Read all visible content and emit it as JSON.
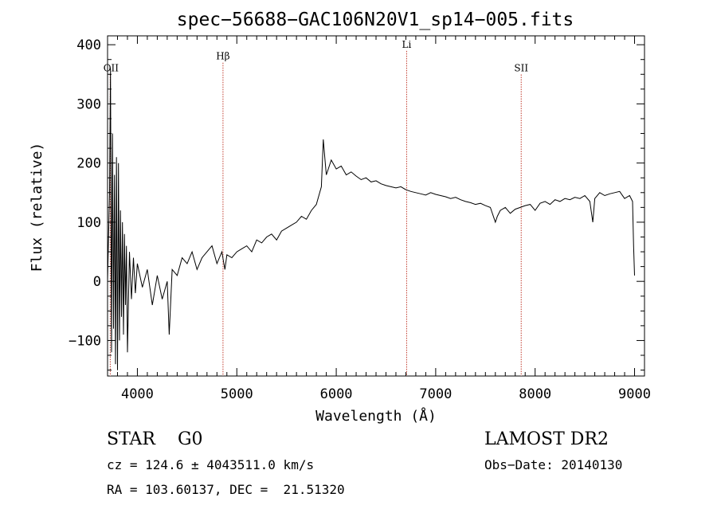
{
  "chart_data": {
    "type": "line",
    "title": "spec−56688−GAC106N20V1_sp14−005.fits",
    "xlabel": "Wavelength (Å)",
    "ylabel": "Flux (relative)",
    "xlim": [
      3700,
      9100
    ],
    "ylim": [
      -160,
      415
    ],
    "xticks": [
      4000,
      5000,
      6000,
      7000,
      8000,
      9000
    ],
    "xtick_labels": [
      "4000",
      "5000",
      "6000",
      "7000",
      "8000",
      "9000"
    ],
    "yticks": [
      -100,
      0,
      100,
      200,
      300,
      400
    ],
    "ytick_labels": [
      "−100",
      "0",
      "100",
      "200",
      "300",
      "400"
    ],
    "grid": false,
    "lines": [
      {
        "label": "OII",
        "x": 3727,
        "y": 355
      },
      {
        "label": "Hβ",
        "x": 4861,
        "y": 375
      },
      {
        "label": "Li",
        "x": 6708,
        "y": 395
      },
      {
        "label": "SII",
        "x": 7860,
        "y": 355
      }
    ],
    "series": [
      {
        "name": "flux",
        "x": [
          3700,
          3720,
          3730,
          3740,
          3750,
          3760,
          3770,
          3780,
          3790,
          3800,
          3810,
          3820,
          3830,
          3840,
          3850,
          3860,
          3870,
          3880,
          3890,
          3900,
          3920,
          3940,
          3960,
          3980,
          4000,
          4050,
          4100,
          4150,
          4200,
          4250,
          4300,
          4320,
          4350,
          4400,
          4450,
          4500,
          4550,
          4600,
          4650,
          4700,
          4750,
          4800,
          4850,
          4880,
          4900,
          4950,
          5000,
          5050,
          5100,
          5150,
          5200,
          5250,
          5300,
          5350,
          5400,
          5450,
          5500,
          5550,
          5600,
          5650,
          5700,
          5750,
          5800,
          5850,
          5870,
          5890,
          5900,
          5920,
          5950,
          6000,
          6050,
          6100,
          6150,
          6200,
          6250,
          6300,
          6350,
          6400,
          6450,
          6500,
          6550,
          6600,
          6650,
          6700,
          6750,
          6800,
          6850,
          6900,
          6950,
          7000,
          7050,
          7100,
          7150,
          7200,
          7250,
          7300,
          7350,
          7400,
          7450,
          7500,
          7550,
          7600,
          7620,
          7650,
          7700,
          7750,
          7800,
          7850,
          7900,
          7950,
          8000,
          8050,
          8100,
          8150,
          8200,
          8250,
          8300,
          8350,
          8400,
          8450,
          8500,
          8550,
          8580,
          8600,
          8650,
          8700,
          8750,
          8800,
          8850,
          8900,
          8950,
          8980,
          8990,
          9000
        ],
        "values": [
          0,
          150,
          360,
          -120,
          250,
          -80,
          180,
          -140,
          210,
          -150,
          200,
          -100,
          120,
          -60,
          100,
          -90,
          80,
          -40,
          60,
          -120,
          50,
          -30,
          40,
          -20,
          30,
          -10,
          20,
          -40,
          10,
          -30,
          0,
          -90,
          20,
          10,
          40,
          30,
          50,
          20,
          40,
          50,
          60,
          30,
          50,
          20,
          45,
          40,
          50,
          55,
          60,
          50,
          70,
          65,
          75,
          80,
          70,
          85,
          90,
          95,
          100,
          110,
          105,
          120,
          130,
          160,
          240,
          200,
          180,
          190,
          205,
          190,
          195,
          180,
          185,
          178,
          172,
          175,
          168,
          170,
          165,
          162,
          160,
          158,
          160,
          155,
          152,
          150,
          148,
          146,
          150,
          147,
          145,
          143,
          140,
          142,
          138,
          135,
          133,
          130,
          132,
          128,
          125,
          100,
          110,
          120,
          125,
          115,
          122,
          125,
          128,
          130,
          120,
          132,
          135,
          130,
          138,
          135,
          140,
          138,
          142,
          140,
          145,
          135,
          100,
          140,
          150,
          145,
          148,
          150,
          152,
          140,
          145,
          135,
          60,
          10
        ]
      }
    ]
  },
  "info": {
    "class_line": "STAR    G0",
    "survey": "LAMOST DR2",
    "cz_line": "cz = 124.6 ± 4043511.0 km/s",
    "obs_date": "Obs−Date: 20140130",
    "coords": "RA = 103.60137, DEC =  21.51320"
  }
}
